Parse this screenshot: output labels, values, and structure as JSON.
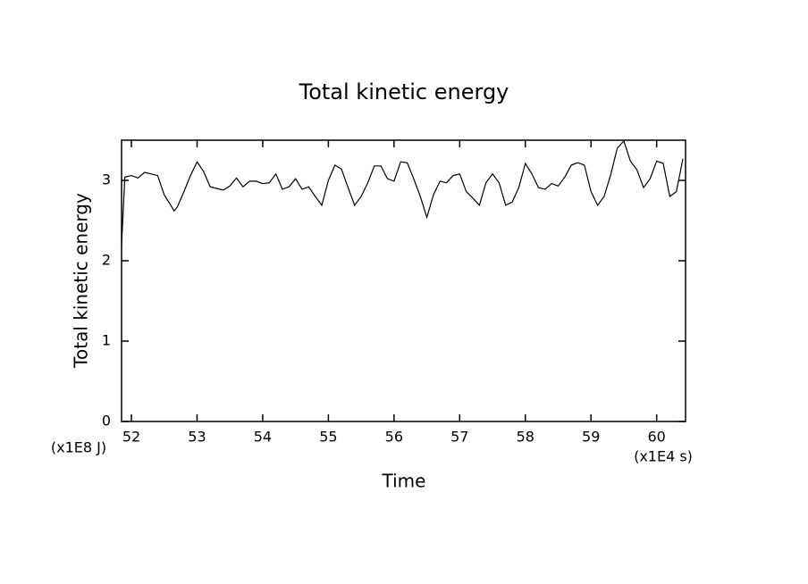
{
  "chart_data": {
    "type": "line",
    "title": "Total kinetic energy",
    "x_label": "Time",
    "y_label": "Total kinetic energy",
    "x_unit_label": "(x1E4 s)",
    "y_unit_label": "(x1E8 J)",
    "xlim": [
      51.85,
      60.44
    ],
    "ylim": [
      0,
      3.5
    ],
    "xticks": [
      52,
      53,
      54,
      55,
      56,
      57,
      58,
      59,
      60
    ],
    "yticks": [
      0,
      1,
      2,
      3
    ],
    "color": "#000000",
    "x": [
      51.85,
      51.9,
      52.0,
      52.1,
      52.2,
      52.3,
      52.4,
      52.5,
      52.6,
      52.65,
      52.7,
      52.8,
      52.9,
      53.0,
      53.1,
      53.2,
      53.3,
      53.4,
      53.5,
      53.6,
      53.7,
      53.8,
      53.9,
      54.0,
      54.1,
      54.2,
      54.3,
      54.4,
      54.5,
      54.6,
      54.7,
      54.8,
      54.9,
      55.0,
      55.1,
      55.2,
      55.3,
      55.4,
      55.5,
      55.6,
      55.7,
      55.8,
      55.9,
      56.0,
      56.1,
      56.2,
      56.3,
      56.4,
      56.5,
      56.6,
      56.7,
      56.8,
      56.9,
      57.0,
      57.1,
      57.2,
      57.3,
      57.4,
      57.5,
      57.6,
      57.7,
      57.8,
      57.9,
      58.0,
      58.1,
      58.2,
      58.3,
      58.4,
      58.5,
      58.6,
      58.7,
      58.8,
      58.9,
      59.0,
      59.1,
      59.2,
      59.3,
      59.4,
      59.5,
      59.6,
      59.7,
      59.8,
      59.9,
      60.0,
      60.1,
      60.2,
      60.3,
      60.4
    ],
    "values": [
      2.19,
      3.04,
      3.06,
      3.03,
      3.1,
      3.08,
      3.06,
      2.82,
      2.69,
      2.62,
      2.67,
      2.86,
      3.06,
      3.23,
      3.11,
      2.92,
      2.9,
      2.88,
      2.93,
      3.03,
      2.92,
      2.99,
      2.99,
      2.96,
      2.97,
      3.08,
      2.89,
      2.92,
      3.02,
      2.89,
      2.92,
      2.8,
      2.69,
      3.0,
      3.19,
      3.14,
      2.91,
      2.69,
      2.8,
      2.97,
      3.18,
      3.18,
      3.02,
      2.99,
      3.23,
      3.22,
      3.02,
      2.8,
      2.54,
      2.82,
      2.99,
      2.97,
      3.06,
      3.08,
      2.86,
      2.78,
      2.69,
      2.97,
      3.08,
      2.97,
      2.69,
      2.73,
      2.91,
      3.21,
      3.08,
      2.91,
      2.89,
      2.96,
      2.93,
      3.04,
      3.19,
      3.22,
      3.19,
      2.86,
      2.69,
      2.8,
      3.07,
      3.4,
      3.49,
      3.24,
      3.13,
      2.91,
      3.02,
      3.24,
      3.21,
      2.8,
      2.86,
      3.27
    ]
  }
}
